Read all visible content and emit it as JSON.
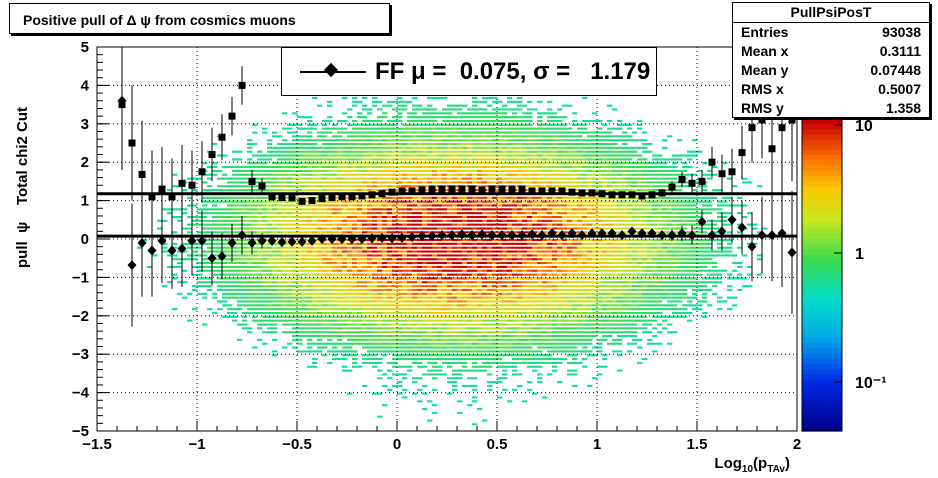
{
  "title": "Positive pull of Δ ψ from cosmics muons",
  "stats": {
    "name": "PullPsiPosT",
    "rows": [
      {
        "label": "Entries",
        "value": "93038"
      },
      {
        "label": "Mean x",
        "value": "0.3111"
      },
      {
        "label": "Mean y",
        "value": "0.07448"
      },
      {
        "label": "RMS x",
        "value": "0.5007"
      },
      {
        "label": "RMS y",
        "value": "1.358"
      }
    ]
  },
  "legend": {
    "text": "FF μ =  0.075, σ =   1.179"
  },
  "axes": {
    "ylabel": "pull  ψ    Total chi2 Cut",
    "xlabel_main": "Log",
    "xlabel_sub1": "10",
    "xlabel_mid": "(p",
    "xlabel_sub2": "TAv",
    "xlabel_end": ")"
  },
  "chart_data": {
    "type": "heatmap",
    "xlim": [
      -1.5,
      2
    ],
    "ylim": [
      -5,
      5
    ],
    "x_ticks": [
      "−1.5",
      "−1",
      "−0.5",
      "0",
      "0.5",
      "1",
      "1.5",
      "2"
    ],
    "y_ticks": [
      "−5",
      "−4",
      "−3",
      "−2",
      "−1",
      "0",
      "1",
      "2",
      "3",
      "4",
      "5"
    ],
    "z_scale": "log",
    "z_ticks": [
      "10",
      "1",
      "10⁻¹"
    ],
    "grid": true,
    "profile_sigma": {
      "x": [
        -1.375,
        -1.325,
        -1.275,
        -1.225,
        -1.175,
        -1.125,
        -1.075,
        -1.025,
        -0.975,
        -0.925,
        -0.875,
        -0.825,
        -0.775,
        -0.725,
        -0.675,
        -0.625,
        -0.575,
        -0.525,
        -0.475,
        -0.425,
        -0.375,
        -0.325,
        -0.275,
        -0.225,
        -0.175,
        -0.125,
        -0.075,
        -0.025,
        0.025,
        0.075,
        0.125,
        0.175,
        0.225,
        0.275,
        0.325,
        0.375,
        0.425,
        0.475,
        0.525,
        0.575,
        0.625,
        0.675,
        0.725,
        0.775,
        0.825,
        0.875,
        0.925,
        0.975,
        1.025,
        1.075,
        1.125,
        1.175,
        1.225,
        1.275,
        1.325,
        1.375,
        1.425,
        1.475,
        1.525,
        1.575,
        1.625,
        1.675,
        1.725,
        1.775,
        1.825,
        1.875,
        1.925,
        1.975
      ],
      "y": [
        3.5,
        2.5,
        1.68,
        1.1,
        1.3,
        1.1,
        1.45,
        1.4,
        1.75,
        2.2,
        2.65,
        3.2,
        4.0,
        1.5,
        1.38,
        1.1,
        1.08,
        1.07,
        0.98,
        1.0,
        1.05,
        1.08,
        1.1,
        1.1,
        1.12,
        1.15,
        1.18,
        1.22,
        1.25,
        1.25,
        1.28,
        1.3,
        1.3,
        1.3,
        1.3,
        1.3,
        1.28,
        1.3,
        1.3,
        1.3,
        1.3,
        1.25,
        1.25,
        1.25,
        1.25,
        1.22,
        1.2,
        1.2,
        1.18,
        1.15,
        1.15,
        1.15,
        1.12,
        1.15,
        1.2,
        1.35,
        1.55,
        1.45,
        1.5,
        2.0,
        1.7,
        1.75,
        2.25,
        2.9,
        3.1,
        2.35,
        2.9,
        3.1
      ],
      "err": [
        1.7,
        1.5,
        1.4,
        1.2,
        1.1,
        1.0,
        1.0,
        0.9,
        0.8,
        0.7,
        0.6,
        0.5,
        0.5,
        0.3,
        0.2,
        0.1,
        0.08,
        0.05,
        0.05,
        0.05,
        0.05,
        0.05,
        0.05,
        0.05,
        0.05,
        0.05,
        0.05,
        0.05,
        0.05,
        0.05,
        0.05,
        0.05,
        0.05,
        0.05,
        0.05,
        0.05,
        0.05,
        0.05,
        0.05,
        0.05,
        0.05,
        0.05,
        0.05,
        0.05,
        0.05,
        0.05,
        0.05,
        0.05,
        0.05,
        0.05,
        0.05,
        0.05,
        0.05,
        0.05,
        0.1,
        0.15,
        0.2,
        0.25,
        0.3,
        0.4,
        0.5,
        0.6,
        0.7,
        0.9,
        1.0,
        1.2,
        1.4,
        1.6
      ]
    },
    "profile_mean": {
      "x": [
        -1.375,
        -1.325,
        -1.275,
        -1.225,
        -1.175,
        -1.125,
        -1.075,
        -1.025,
        -0.975,
        -0.925,
        -0.875,
        -0.825,
        -0.775,
        -0.725,
        -0.675,
        -0.625,
        -0.575,
        -0.525,
        -0.475,
        -0.425,
        -0.375,
        -0.325,
        -0.275,
        -0.225,
        -0.175,
        -0.125,
        -0.075,
        -0.025,
        0.025,
        0.075,
        0.125,
        0.175,
        0.225,
        0.275,
        0.325,
        0.375,
        0.425,
        0.475,
        0.525,
        0.575,
        0.625,
        0.675,
        0.725,
        0.775,
        0.825,
        0.875,
        0.925,
        0.975,
        1.025,
        1.075,
        1.125,
        1.175,
        1.225,
        1.275,
        1.325,
        1.375,
        1.425,
        1.475,
        1.525,
        1.575,
        1.625,
        1.675,
        1.725,
        1.775,
        1.825,
        1.875,
        1.925,
        1.975
      ],
      "y": [
        3.6,
        -0.68,
        -0.1,
        -0.3,
        -0.05,
        -0.3,
        -0.25,
        -0.05,
        -0.05,
        -0.5,
        -0.45,
        -0.1,
        0.1,
        -0.1,
        -0.05,
        -0.05,
        -0.08,
        -0.07,
        -0.07,
        -0.05,
        0.0,
        0.0,
        0.0,
        0.0,
        0.0,
        0.02,
        0.03,
        0.02,
        0.03,
        0.05,
        0.08,
        0.08,
        0.1,
        0.1,
        0.12,
        0.1,
        0.12,
        0.1,
        0.1,
        0.1,
        0.1,
        0.12,
        0.1,
        0.15,
        0.1,
        0.15,
        0.1,
        0.15,
        0.15,
        0.15,
        0.1,
        0.2,
        0.15,
        0.15,
        0.1,
        0.1,
        0.15,
        0.1,
        0.45,
        0.1,
        0.2,
        0.5,
        0.3,
        -0.2,
        0.1,
        0.1,
        0.15,
        -0.35
      ],
      "err": [
        1.7,
        1.6,
        1.4,
        1.2,
        1.1,
        1.0,
        1.0,
        0.9,
        0.8,
        0.7,
        0.6,
        0.5,
        0.5,
        0.3,
        0.2,
        0.1,
        0.08,
        0.05,
        0.05,
        0.05,
        0.05,
        0.05,
        0.05,
        0.05,
        0.05,
        0.05,
        0.05,
        0.05,
        0.05,
        0.05,
        0.05,
        0.05,
        0.05,
        0.05,
        0.05,
        0.05,
        0.05,
        0.05,
        0.05,
        0.05,
        0.05,
        0.05,
        0.05,
        0.05,
        0.05,
        0.05,
        0.05,
        0.05,
        0.05,
        0.05,
        0.05,
        0.05,
        0.05,
        0.05,
        0.1,
        0.15,
        0.2,
        0.25,
        0.3,
        0.4,
        0.5,
        0.6,
        0.7,
        0.9,
        1.0,
        1.2,
        1.4,
        1.6
      ]
    },
    "fit_lines": [
      {
        "y": 1.179
      },
      {
        "y": 0.075
      }
    ]
  }
}
